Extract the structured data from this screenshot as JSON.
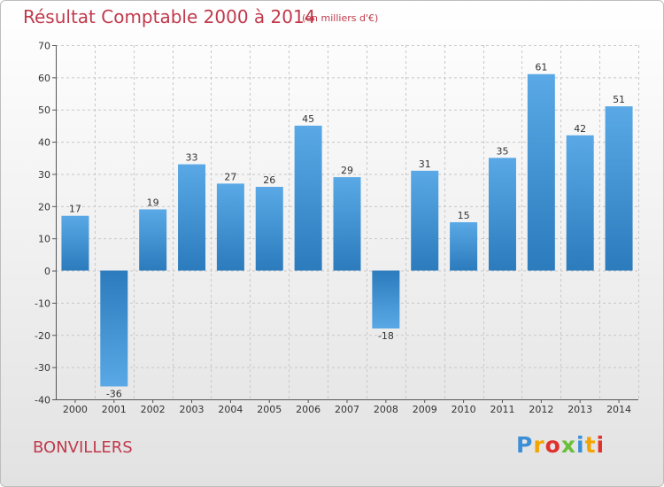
{
  "title": "Résultat Comptable 2000 à 2014",
  "subtitle": "(en milliers d'€)",
  "town": "BONVILLERS",
  "logo": {
    "letters": [
      "P",
      "r",
      "o",
      "x",
      "i",
      "t",
      "i"
    ],
    "colors": [
      "#3b8fd6",
      "#f2a500",
      "#e0312d",
      "#6abf3a",
      "#3b8fd6",
      "#f2a500",
      "#e0312d"
    ]
  },
  "colors": {
    "bar_top": "#5aa9e6",
    "bar_bottom": "#2b7bbd",
    "title": "#c0394b"
  },
  "chart_data": {
    "type": "bar",
    "title": "Résultat Comptable 2000 à 2014",
    "subtitle": "(en milliers d'€)",
    "xlabel": "",
    "ylabel": "",
    "categories": [
      "2000",
      "2001",
      "2002",
      "2003",
      "2004",
      "2005",
      "2006",
      "2007",
      "2008",
      "2009",
      "2010",
      "2011",
      "2012",
      "2013",
      "2014"
    ],
    "values": [
      17,
      -36,
      19,
      33,
      27,
      26,
      45,
      29,
      -18,
      31,
      15,
      35,
      61,
      42,
      51
    ],
    "ylim": [
      -40,
      70
    ],
    "yticks": [
      70,
      60,
      50,
      40,
      30,
      20,
      10,
      0,
      -10,
      -20,
      -30,
      -40
    ],
    "grid": true,
    "legend": "none"
  }
}
